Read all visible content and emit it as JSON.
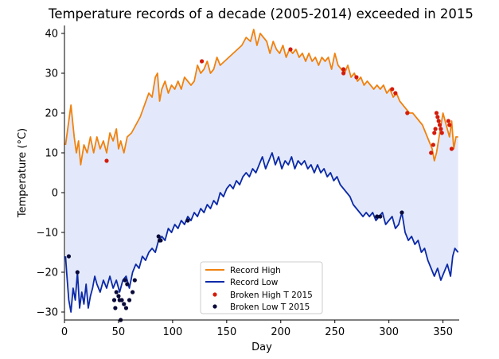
{
  "chart_data": {
    "type": "line",
    "title": "Temperature records of a decade (2005-2014) exceeded in 2015",
    "xlabel": "Day",
    "ylabel": "Temperature (°C)",
    "xlim": [
      0,
      365
    ],
    "ylim": [
      -32,
      42
    ],
    "xticks": [
      0,
      50,
      100,
      150,
      200,
      250,
      300,
      350
    ],
    "yticks": [
      -30,
      -20,
      -10,
      0,
      10,
      20,
      30,
      40
    ],
    "grid": false,
    "legend_position": "bottom-center",
    "fill_between": {
      "color": "#e3e9fb",
      "between": [
        "Record High",
        "Record Low"
      ]
    },
    "series": [
      {
        "name": "Record High",
        "type": "line",
        "color": "#f0820f",
        "points": [
          [
            1,
            12
          ],
          [
            3,
            16
          ],
          [
            6,
            22
          ],
          [
            9,
            14
          ],
          [
            11,
            10
          ],
          [
            13,
            13
          ],
          [
            15,
            7
          ],
          [
            18,
            12
          ],
          [
            21,
            10
          ],
          [
            24,
            14
          ],
          [
            27,
            10
          ],
          [
            30,
            14
          ],
          [
            33,
            11
          ],
          [
            36,
            13
          ],
          [
            39,
            10
          ],
          [
            42,
            15
          ],
          [
            45,
            13
          ],
          [
            48,
            16
          ],
          [
            50,
            11
          ],
          [
            52,
            13
          ],
          [
            55,
            10
          ],
          [
            58,
            14
          ],
          [
            62,
            15
          ],
          [
            66,
            17
          ],
          [
            70,
            19
          ],
          [
            74,
            22
          ],
          [
            78,
            25
          ],
          [
            81,
            24
          ],
          [
            84,
            29
          ],
          [
            86,
            30
          ],
          [
            88,
            23
          ],
          [
            90,
            26
          ],
          [
            93,
            28
          ],
          [
            96,
            25
          ],
          [
            99,
            27
          ],
          [
            102,
            26
          ],
          [
            105,
            28
          ],
          [
            108,
            26
          ],
          [
            111,
            29
          ],
          [
            114,
            28
          ],
          [
            117,
            27
          ],
          [
            120,
            28
          ],
          [
            123,
            32
          ],
          [
            126,
            30
          ],
          [
            129,
            31
          ],
          [
            132,
            33
          ],
          [
            135,
            30
          ],
          [
            138,
            31
          ],
          [
            141,
            34
          ],
          [
            144,
            32
          ],
          [
            148,
            33
          ],
          [
            152,
            34
          ],
          [
            156,
            35
          ],
          [
            160,
            36
          ],
          [
            164,
            37
          ],
          [
            168,
            39
          ],
          [
            172,
            38
          ],
          [
            175,
            41
          ],
          [
            178,
            37
          ],
          [
            181,
            40
          ],
          [
            184,
            39
          ],
          [
            187,
            38
          ],
          [
            190,
            35
          ],
          [
            193,
            38
          ],
          [
            196,
            36
          ],
          [
            199,
            35
          ],
          [
            202,
            37
          ],
          [
            205,
            34
          ],
          [
            208,
            36
          ],
          [
            211,
            35
          ],
          [
            214,
            36
          ],
          [
            217,
            34
          ],
          [
            220,
            35
          ],
          [
            223,
            33
          ],
          [
            226,
            35
          ],
          [
            229,
            33
          ],
          [
            232,
            34
          ],
          [
            235,
            32
          ],
          [
            238,
            34
          ],
          [
            241,
            33
          ],
          [
            244,
            34
          ],
          [
            247,
            31
          ],
          [
            250,
            35
          ],
          [
            253,
            32
          ],
          [
            256,
            31
          ],
          [
            259,
            30
          ],
          [
            262,
            32
          ],
          [
            265,
            29
          ],
          [
            268,
            30
          ],
          [
            271,
            28
          ],
          [
            274,
            29
          ],
          [
            277,
            27
          ],
          [
            280,
            28
          ],
          [
            283,
            27
          ],
          [
            286,
            26
          ],
          [
            289,
            27
          ],
          [
            292,
            26
          ],
          [
            295,
            27
          ],
          [
            298,
            25
          ],
          [
            301,
            26
          ],
          [
            304,
            24
          ],
          [
            307,
            25
          ],
          [
            310,
            23
          ],
          [
            313,
            22
          ],
          [
            316,
            21
          ],
          [
            319,
            20
          ],
          [
            322,
            20
          ],
          [
            325,
            19
          ],
          [
            328,
            18
          ],
          [
            331,
            17
          ],
          [
            334,
            15
          ],
          [
            337,
            13
          ],
          [
            340,
            11
          ],
          [
            342,
            8
          ],
          [
            344,
            10
          ],
          [
            347,
            15
          ],
          [
            350,
            20
          ],
          [
            353,
            17
          ],
          [
            356,
            14
          ],
          [
            358,
            18
          ],
          [
            360,
            11
          ],
          [
            362,
            14
          ],
          [
            364,
            14
          ]
        ]
      },
      {
        "name": "Record Low",
        "type": "line",
        "color": "#0c2aa8",
        "points": [
          [
            1,
            -16
          ],
          [
            2,
            -20
          ],
          [
            4,
            -27
          ],
          [
            6,
            -30
          ],
          [
            8,
            -24
          ],
          [
            10,
            -27
          ],
          [
            12,
            -20
          ],
          [
            14,
            -29
          ],
          [
            16,
            -25
          ],
          [
            18,
            -28
          ],
          [
            20,
            -23
          ],
          [
            22,
            -29
          ],
          [
            24,
            -26
          ],
          [
            26,
            -24
          ],
          [
            28,
            -21
          ],
          [
            30,
            -23
          ],
          [
            33,
            -25
          ],
          [
            36,
            -22
          ],
          [
            39,
            -24
          ],
          [
            42,
            -21
          ],
          [
            45,
            -24
          ],
          [
            48,
            -22
          ],
          [
            51,
            -25
          ],
          [
            54,
            -22
          ],
          [
            57,
            -21
          ],
          [
            60,
            -24
          ],
          [
            63,
            -20
          ],
          [
            66,
            -18
          ],
          [
            69,
            -19
          ],
          [
            72,
            -16
          ],
          [
            75,
            -17
          ],
          [
            78,
            -15
          ],
          [
            81,
            -14
          ],
          [
            84,
            -15
          ],
          [
            87,
            -12
          ],
          [
            90,
            -11
          ],
          [
            93,
            -12
          ],
          [
            96,
            -9
          ],
          [
            99,
            -10
          ],
          [
            102,
            -8
          ],
          [
            105,
            -9
          ],
          [
            108,
            -7
          ],
          [
            111,
            -8
          ],
          [
            114,
            -6
          ],
          [
            117,
            -7
          ],
          [
            120,
            -5
          ],
          [
            123,
            -6
          ],
          [
            126,
            -4
          ],
          [
            129,
            -5
          ],
          [
            132,
            -3
          ],
          [
            135,
            -4
          ],
          [
            138,
            -2
          ],
          [
            141,
            -3
          ],
          [
            144,
            0
          ],
          [
            147,
            -1
          ],
          [
            150,
            1
          ],
          [
            153,
            2
          ],
          [
            156,
            1
          ],
          [
            159,
            3
          ],
          [
            162,
            2
          ],
          [
            165,
            4
          ],
          [
            168,
            5
          ],
          [
            171,
            4
          ],
          [
            174,
            6
          ],
          [
            177,
            5
          ],
          [
            180,
            7
          ],
          [
            183,
            9
          ],
          [
            186,
            6
          ],
          [
            189,
            8
          ],
          [
            192,
            10
          ],
          [
            195,
            7
          ],
          [
            198,
            9
          ],
          [
            201,
            6
          ],
          [
            204,
            8
          ],
          [
            207,
            7
          ],
          [
            210,
            9
          ],
          [
            213,
            6
          ],
          [
            216,
            8
          ],
          [
            219,
            7
          ],
          [
            222,
            8
          ],
          [
            225,
            6
          ],
          [
            228,
            7
          ],
          [
            231,
            5
          ],
          [
            234,
            7
          ],
          [
            237,
            5
          ],
          [
            240,
            6
          ],
          [
            243,
            4
          ],
          [
            246,
            5
          ],
          [
            249,
            3
          ],
          [
            252,
            4
          ],
          [
            255,
            2
          ],
          [
            258,
            1
          ],
          [
            261,
            0
          ],
          [
            264,
            -1
          ],
          [
            267,
            -3
          ],
          [
            270,
            -4
          ],
          [
            273,
            -5
          ],
          [
            276,
            -6
          ],
          [
            279,
            -5
          ],
          [
            282,
            -6
          ],
          [
            285,
            -5
          ],
          [
            288,
            -7
          ],
          [
            291,
            -6
          ],
          [
            294,
            -5
          ],
          [
            297,
            -8
          ],
          [
            300,
            -7
          ],
          [
            303,
            -6
          ],
          [
            306,
            -9
          ],
          [
            309,
            -8
          ],
          [
            312,
            -5
          ],
          [
            315,
            -10
          ],
          [
            318,
            -12
          ],
          [
            321,
            -11
          ],
          [
            324,
            -13
          ],
          [
            327,
            -12
          ],
          [
            330,
            -15
          ],
          [
            333,
            -14
          ],
          [
            336,
            -17
          ],
          [
            339,
            -19
          ],
          [
            342,
            -21
          ],
          [
            345,
            -19
          ],
          [
            348,
            -22
          ],
          [
            351,
            -20
          ],
          [
            354,
            -18
          ],
          [
            357,
            -21
          ],
          [
            359,
            -16
          ],
          [
            361,
            -14
          ],
          [
            364,
            -15
          ]
        ]
      },
      {
        "name": "Broken High T 2015",
        "type": "scatter",
        "color": "#d41c0c",
        "points": [
          [
            39,
            8
          ],
          [
            127,
            33
          ],
          [
            209,
            36
          ],
          [
            258,
            31
          ],
          [
            258,
            30
          ],
          [
            270,
            29
          ],
          [
            303,
            26
          ],
          [
            306,
            25
          ],
          [
            317,
            20
          ],
          [
            339,
            10
          ],
          [
            341,
            12
          ],
          [
            342,
            15
          ],
          [
            343,
            16
          ],
          [
            344,
            20
          ],
          [
            345,
            19
          ],
          [
            346,
            18
          ],
          [
            347,
            17
          ],
          [
            348,
            16
          ],
          [
            349,
            15
          ],
          [
            355,
            18
          ],
          [
            356,
            17
          ],
          [
            358,
            11
          ]
        ]
      },
      {
        "name": "Broken Low T 2015",
        "type": "scatter",
        "color": "#0a0a3a",
        "points": [
          [
            4,
            -16
          ],
          [
            12,
            -20
          ],
          [
            46,
            -27
          ],
          [
            47,
            -29
          ],
          [
            48,
            -25
          ],
          [
            50,
            -26
          ],
          [
            51,
            -27
          ],
          [
            52,
            -32
          ],
          [
            53,
            -27
          ],
          [
            55,
            -28
          ],
          [
            56,
            -22
          ],
          [
            57,
            -29
          ],
          [
            58,
            -23
          ],
          [
            60,
            -27
          ],
          [
            63,
            -25
          ],
          [
            65,
            -22
          ],
          [
            87,
            -11
          ],
          [
            88,
            -12
          ],
          [
            89,
            -12
          ],
          [
            114,
            -7
          ],
          [
            289,
            -6
          ],
          [
            292,
            -6
          ],
          [
            312,
            -5
          ]
        ]
      }
    ]
  }
}
